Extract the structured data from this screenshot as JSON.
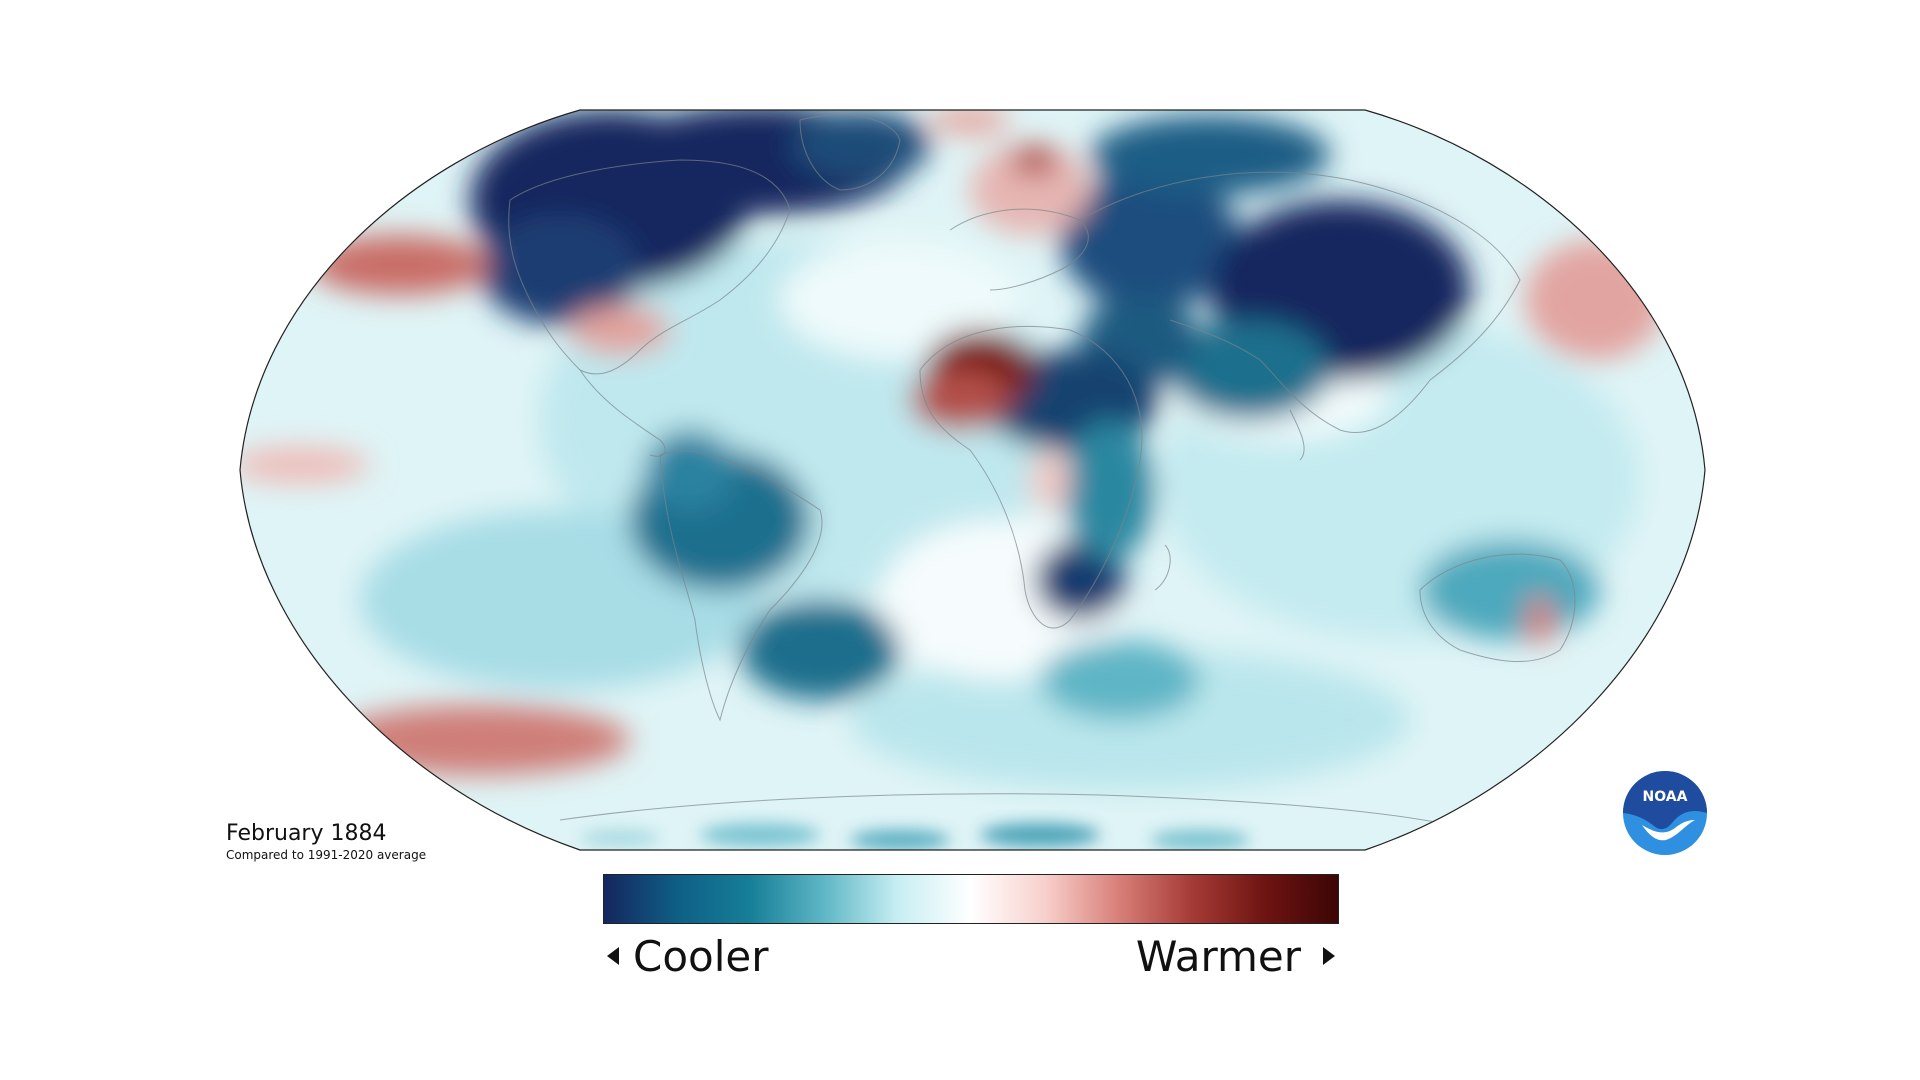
{
  "map": {
    "projection": "robinson",
    "caption_title": "February 1884",
    "caption_subtitle": "Compared to 1991-2020 average"
  },
  "legend": {
    "cooler_label": "Cooler",
    "warmer_label": "Warmer",
    "colors": [
      "#15265e",
      "#0e5f86",
      "#177f98",
      "#5fb7c6",
      "#c7eef2",
      "#ffffff",
      "#f8d0cc",
      "#d9807a",
      "#a63b36",
      "#6e1412",
      "#3d0505"
    ]
  },
  "logo": {
    "text": "NOAA",
    "primary_color": "#1f4c9e",
    "accent_color": "#2f8fe0"
  }
}
